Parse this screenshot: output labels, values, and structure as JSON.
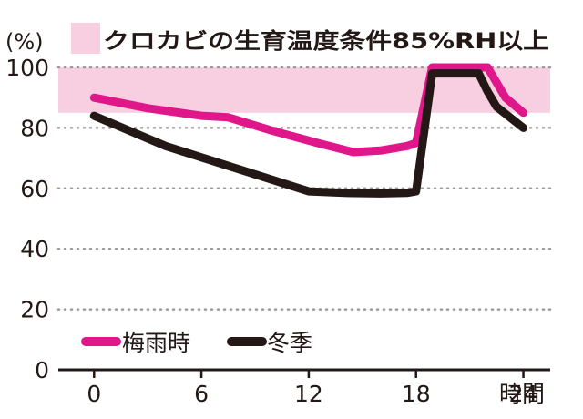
{
  "chart_data": {
    "type": "line",
    "title": "クロカビの生育温度条件85%RH以上",
    "ylabel": "(%)",
    "xlabel": "時間",
    "xlim": [
      -2,
      25.5
    ],
    "ylim": [
      0,
      100
    ],
    "x_ticks": [
      0,
      6,
      12,
      18,
      24
    ],
    "x_tick_labels": [
      "0",
      "6",
      "12",
      "18",
      "24"
    ],
    "y_ticks": [
      0,
      20,
      40,
      60,
      80,
      100
    ],
    "y_tick_labels": [
      "0",
      "20",
      "40",
      "60",
      "80",
      "100"
    ],
    "grid": "horizontal dotted",
    "band": {
      "from": 85,
      "to": 100,
      "color": "#f7cfe0"
    },
    "legend_position": "bottom-left",
    "series": [
      {
        "name": "梅雨時",
        "color": "#e0178a",
        "points": [
          [
            0,
            90
          ],
          [
            3,
            86.5
          ],
          [
            6,
            84
          ],
          [
            7.5,
            83.5
          ],
          [
            10,
            79
          ],
          [
            12.5,
            75
          ],
          [
            14.5,
            72
          ],
          [
            16,
            72.5
          ],
          [
            17.5,
            74
          ],
          [
            18,
            75
          ],
          [
            18.9,
            100
          ],
          [
            22,
            100
          ],
          [
            23,
            90
          ],
          [
            24,
            85
          ]
        ]
      },
      {
        "name": "冬季",
        "color": "#231815",
        "points": [
          [
            0,
            84
          ],
          [
            4,
            74
          ],
          [
            8,
            66.5
          ],
          [
            12,
            59
          ],
          [
            14,
            58.5
          ],
          [
            16,
            58.3
          ],
          [
            17.5,
            58.5
          ],
          [
            18,
            59
          ],
          [
            18.9,
            98
          ],
          [
            21.5,
            98
          ],
          [
            22,
            92
          ],
          [
            22.5,
            87
          ],
          [
            24,
            80
          ]
        ]
      }
    ]
  }
}
